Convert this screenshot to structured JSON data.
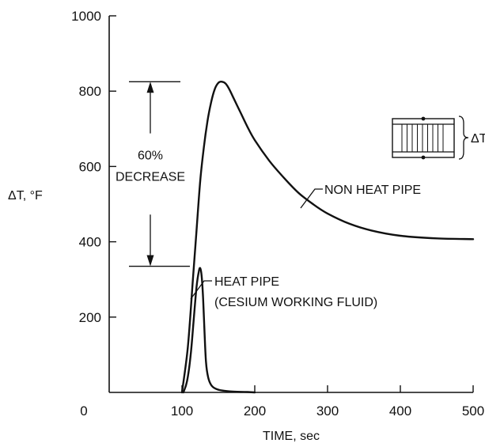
{
  "chart_data": {
    "type": "line",
    "xlabel": "TIME, sec",
    "ylabel": "ΔT, °F",
    "xlim": [
      0,
      500
    ],
    "ylim": [
      0,
      1000
    ],
    "x_ticks": [
      0,
      100,
      200,
      300,
      400,
      500
    ],
    "y_ticks": [
      200,
      400,
      600,
      800,
      1000
    ],
    "grid": false,
    "series": [
      {
        "name": "NON HEAT PIPE",
        "x": [
          100,
          108,
          115,
          120,
          125,
          130,
          135,
          140,
          145,
          150,
          155,
          160,
          165,
          170,
          180,
          190,
          200,
          220,
          240,
          260,
          280,
          300,
          330,
          360,
          400,
          450,
          500
        ],
        "y": [
          0,
          120,
          300,
          430,
          560,
          650,
          720,
          770,
          805,
          822,
          825,
          820,
          805,
          785,
          745,
          705,
          670,
          615,
          570,
          530,
          500,
          475,
          448,
          430,
          416,
          409,
          407
        ]
      },
      {
        "name": "HEAT PIPE (CESIUM WORKING FLUID)",
        "x": [
          102,
          107,
          112,
          116,
          120,
          123,
          125,
          127,
          129,
          131,
          133,
          136,
          140,
          146,
          155,
          170,
          190,
          200
        ],
        "y": [
          0,
          30,
          100,
          190,
          280,
          320,
          330,
          310,
          250,
          160,
          80,
          40,
          20,
          10,
          5,
          2,
          1,
          0
        ]
      }
    ],
    "annotations": {
      "decrease": "60% DECREASE",
      "non_heat_pipe": "NON HEAT PIPE",
      "heat_pipe_line1": "HEAT PIPE",
      "heat_pipe_line2": "(CESIUM WORKING FLUID)",
      "inset_label": "ΔT",
      "decrease_top": 825,
      "decrease_bottom": 335
    }
  }
}
